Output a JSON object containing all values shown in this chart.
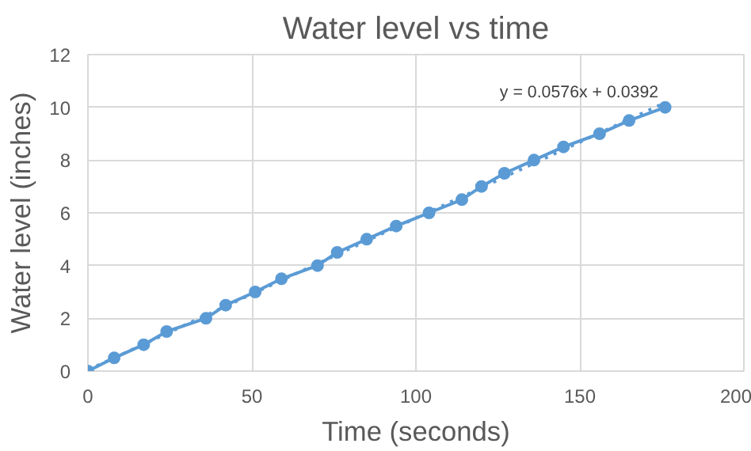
{
  "chart_data": {
    "type": "line",
    "title": "Water level vs time",
    "xlabel": "Time (seconds)",
    "ylabel": "Water level (inches)",
    "xlim": [
      0,
      200
    ],
    "xticks": [
      0,
      50,
      100,
      150,
      200
    ],
    "ylim": [
      0,
      12
    ],
    "yticks": [
      0,
      2,
      4,
      6,
      8,
      10,
      12
    ],
    "grid": true,
    "marker": "circle",
    "series": [
      {
        "color": "#5b9bd5",
        "x": [
          0,
          8,
          17,
          24,
          36,
          42,
          51,
          59,
          70,
          76,
          85,
          94,
          104,
          114,
          120,
          127,
          136,
          145,
          156,
          165,
          176
        ],
        "values": [
          0,
          0.5,
          1,
          1.5,
          2,
          2.5,
          3,
          3.5,
          4,
          4.5,
          5,
          5.5,
          6,
          6.5,
          7,
          7.5,
          8,
          8.5,
          9,
          9.5,
          10
        ]
      },
      {
        "color": "#5b9bd5",
        "line_style": "dotted",
        "marker": "none",
        "x": [
          0,
          176
        ],
        "values": [
          0.04,
          10.18
        ]
      }
    ],
    "annotations": [
      "y = 0.0576x + 0.0392"
    ]
  }
}
